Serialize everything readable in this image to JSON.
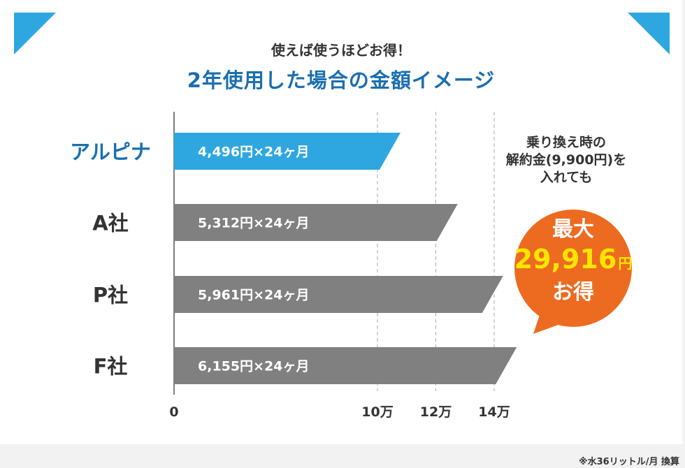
{
  "header": {
    "subtitle": "使えば使うほどお得！",
    "title": "2年使用した場合の金額イメージ"
  },
  "colors": {
    "accent": "#2ea7e0",
    "accent_dark": "#1a6fb0",
    "gray_bar": "#808080",
    "bubble": "#ed6b21",
    "highlight": "#ffe600"
  },
  "chart_data": {
    "type": "bar",
    "orientation": "horizontal",
    "categories": [
      "アルピナ",
      "A社",
      "P社",
      "F社"
    ],
    "values": [
      107904,
      127488,
      143064,
      147720
    ],
    "bar_labels": [
      "4,496円×24ヶ月",
      "5,312円×24ヶ月",
      "5,961円×24ヶ月",
      "6,155円×24ヶ月"
    ],
    "xlim": [
      0,
      170000
    ],
    "xticks": [
      0,
      100000,
      120000,
      140000
    ],
    "xtick_labels": [
      "0",
      "10万",
      "12万",
      "14万"
    ],
    "grid_lines": [
      100000,
      120000,
      140000
    ],
    "grid": true,
    "highlight_category": "アルピナ"
  },
  "side_note": {
    "lines": [
      "乗り換え時の",
      "解約金(9,900円)を",
      "入れても"
    ]
  },
  "bubble": {
    "line1": "最大",
    "amount": "29,916",
    "unit": "円",
    "line3": "お得"
  },
  "footnote": "※水36リットル/月 換算"
}
